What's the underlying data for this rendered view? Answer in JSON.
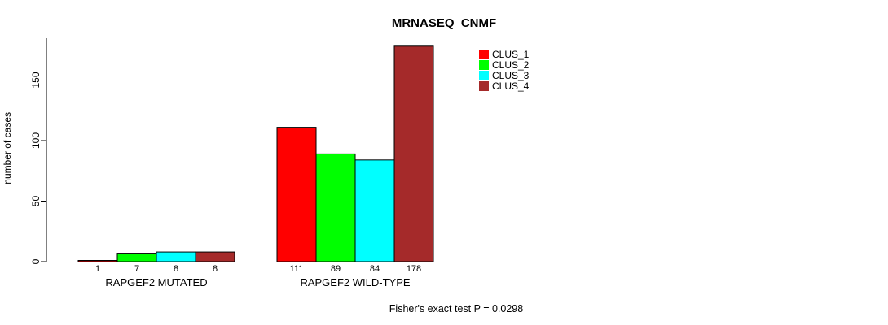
{
  "chart_data": {
    "type": "bar",
    "title": "MRNASEQ_CNMF",
    "ylabel": "number of cases",
    "xlabel": "",
    "categories": [
      "RAPGEF2 MUTATED",
      "RAPGEF2 WILD-TYPE"
    ],
    "series": [
      {
        "name": "CLUS_1",
        "color": "#FF0000",
        "values": [
          1,
          111
        ]
      },
      {
        "name": "CLUS_2",
        "color": "#00FF00",
        "values": [
          7,
          89
        ]
      },
      {
        "name": "CLUS_3",
        "color": "#00FFFF",
        "values": [
          8,
          84
        ]
      },
      {
        "name": "CLUS_4",
        "color": "#A52A2A",
        "values": [
          8,
          178
        ]
      }
    ],
    "yticks": [
      0,
      50,
      100,
      150
    ],
    "ylim": [
      0,
      185
    ],
    "grid": false,
    "legend_position": "top-right",
    "bar_value_labels": true,
    "annotation": "Fisher's exact test P = 0.0298"
  }
}
